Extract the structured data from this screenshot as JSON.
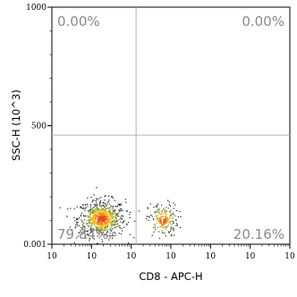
{
  "chart_data": {
    "type": "scatter",
    "plot_kind": "flow cytometry density dot plot",
    "xlabel": "CD8 - APC-H",
    "ylabel": "SSC-H (10^3)",
    "x_scale": "log",
    "xlim": [
      1,
      10000000
    ],
    "x_ticks": [
      "10",
      "10",
      "10",
      "10",
      "10",
      "10",
      "10"
    ],
    "y_scale": "linear",
    "ylim": [
      0,
      1000
    ],
    "y_ticks": [
      "0.001",
      "500",
      "1000"
    ],
    "quadrant_gate": {
      "x_split": 300,
      "y_split": 460
    },
    "quadrants": [
      {
        "position": "upper-left",
        "label": "0.00%"
      },
      {
        "position": "upper-right",
        "label": "0.00%"
      },
      {
        "position": "lower-left",
        "label": "79.84%"
      },
      {
        "position": "lower-right",
        "label": "20.16%"
      }
    ],
    "populations": [
      {
        "center_x": 28,
        "center_y": 110,
        "spread_x_decades": 0.35,
        "spread_y": 40,
        "share": 0.8
      },
      {
        "center_x": 1800,
        "center_y": 105,
        "spread_x_decades": 0.22,
        "spread_y": 35,
        "share": 0.2
      }
    ],
    "density_colors": [
      "#1a1a1a",
      "#3a4a2a",
      "#8a9a20",
      "#f2c020",
      "#f08a20",
      "#e84a20"
    ],
    "gate_color": "#b0b0b0",
    "grid": false
  }
}
